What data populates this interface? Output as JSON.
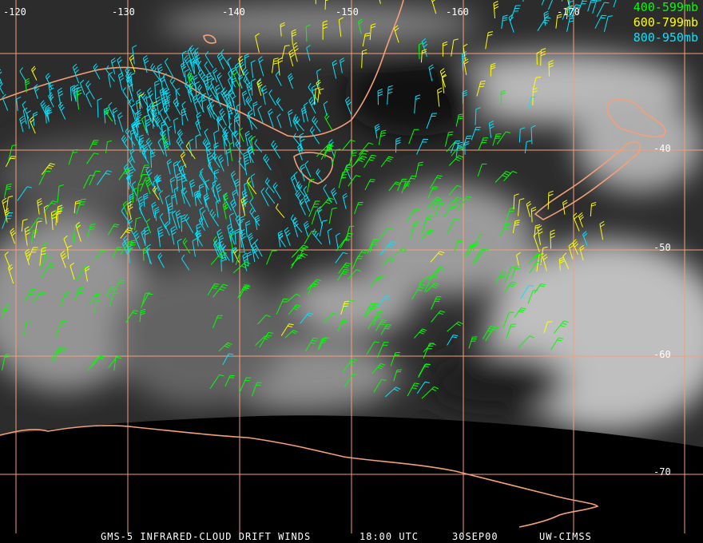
{
  "colors": {
    "grid": "#f4a078",
    "coast": "#f4a078",
    "level_400_599": "#00ff00",
    "level_600_799": "#ffff00",
    "level_800_950": "#00e5ff"
  },
  "legend": [
    {
      "label": "400-599mb",
      "color": "#00ff00"
    },
    {
      "label": "600-799mb",
      "color": "#ffff00"
    },
    {
      "label": "800-950mb",
      "color": "#00e5ff"
    }
  ],
  "longitude_labels": [
    "-120",
    "-130",
    "-140",
    "-150",
    "-160",
    "-170"
  ],
  "latitude_labels": [
    "-40",
    "-50",
    "-60",
    "-70"
  ],
  "footer": {
    "product": "GMS-5 INFRARED-CLOUD DRIFT WINDS",
    "time": "18:00 UTC",
    "date": "30SEP00",
    "source": "UW-CIMSS"
  }
}
